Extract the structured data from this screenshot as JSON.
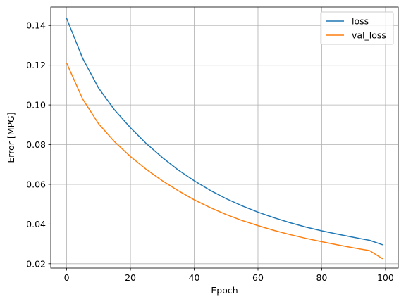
{
  "chart_data": {
    "type": "line",
    "title": "",
    "xlabel": "Epoch",
    "ylabel": "Error [MPG]",
    "xlim": [
      -5,
      104
    ],
    "ylim": [
      0.0178,
      0.1493
    ],
    "xticks": [
      0,
      20,
      40,
      60,
      80,
      100
    ],
    "yticks": [
      0.02,
      0.04,
      0.06,
      0.08,
      0.1,
      0.12,
      0.14
    ],
    "xtick_labels": [
      "0",
      "20",
      "40",
      "60",
      "80",
      "100"
    ],
    "ytick_labels": [
      "0.02",
      "0.04",
      "0.06",
      "0.08",
      "0.10",
      "0.12",
      "0.14"
    ],
    "grid": true,
    "legend_position": "top-right",
    "x": [
      0,
      5,
      10,
      15,
      20,
      25,
      30,
      35,
      40,
      45,
      50,
      55,
      60,
      65,
      70,
      75,
      80,
      85,
      90,
      95,
      99
    ],
    "series": [
      {
        "name": "loss",
        "color": "#1f77b4",
        "values": [
          0.1435,
          0.1235,
          0.1085,
          0.0975,
          0.0885,
          0.0805,
          0.0735,
          0.0672,
          0.0618,
          0.057,
          0.0528,
          0.0492,
          0.046,
          0.0432,
          0.0407,
          0.0385,
          0.0366,
          0.0349,
          0.0333,
          0.0318,
          0.0296
        ]
      },
      {
        "name": "val_loss",
        "color": "#ff7f0e",
        "values": [
          0.121,
          0.103,
          0.0905,
          0.0815,
          0.074,
          0.0675,
          0.0618,
          0.0568,
          0.0522,
          0.0483,
          0.0448,
          0.0418,
          0.0392,
          0.0368,
          0.0347,
          0.0328,
          0.0311,
          0.0295,
          0.028,
          0.0266,
          0.0226
        ]
      }
    ]
  }
}
